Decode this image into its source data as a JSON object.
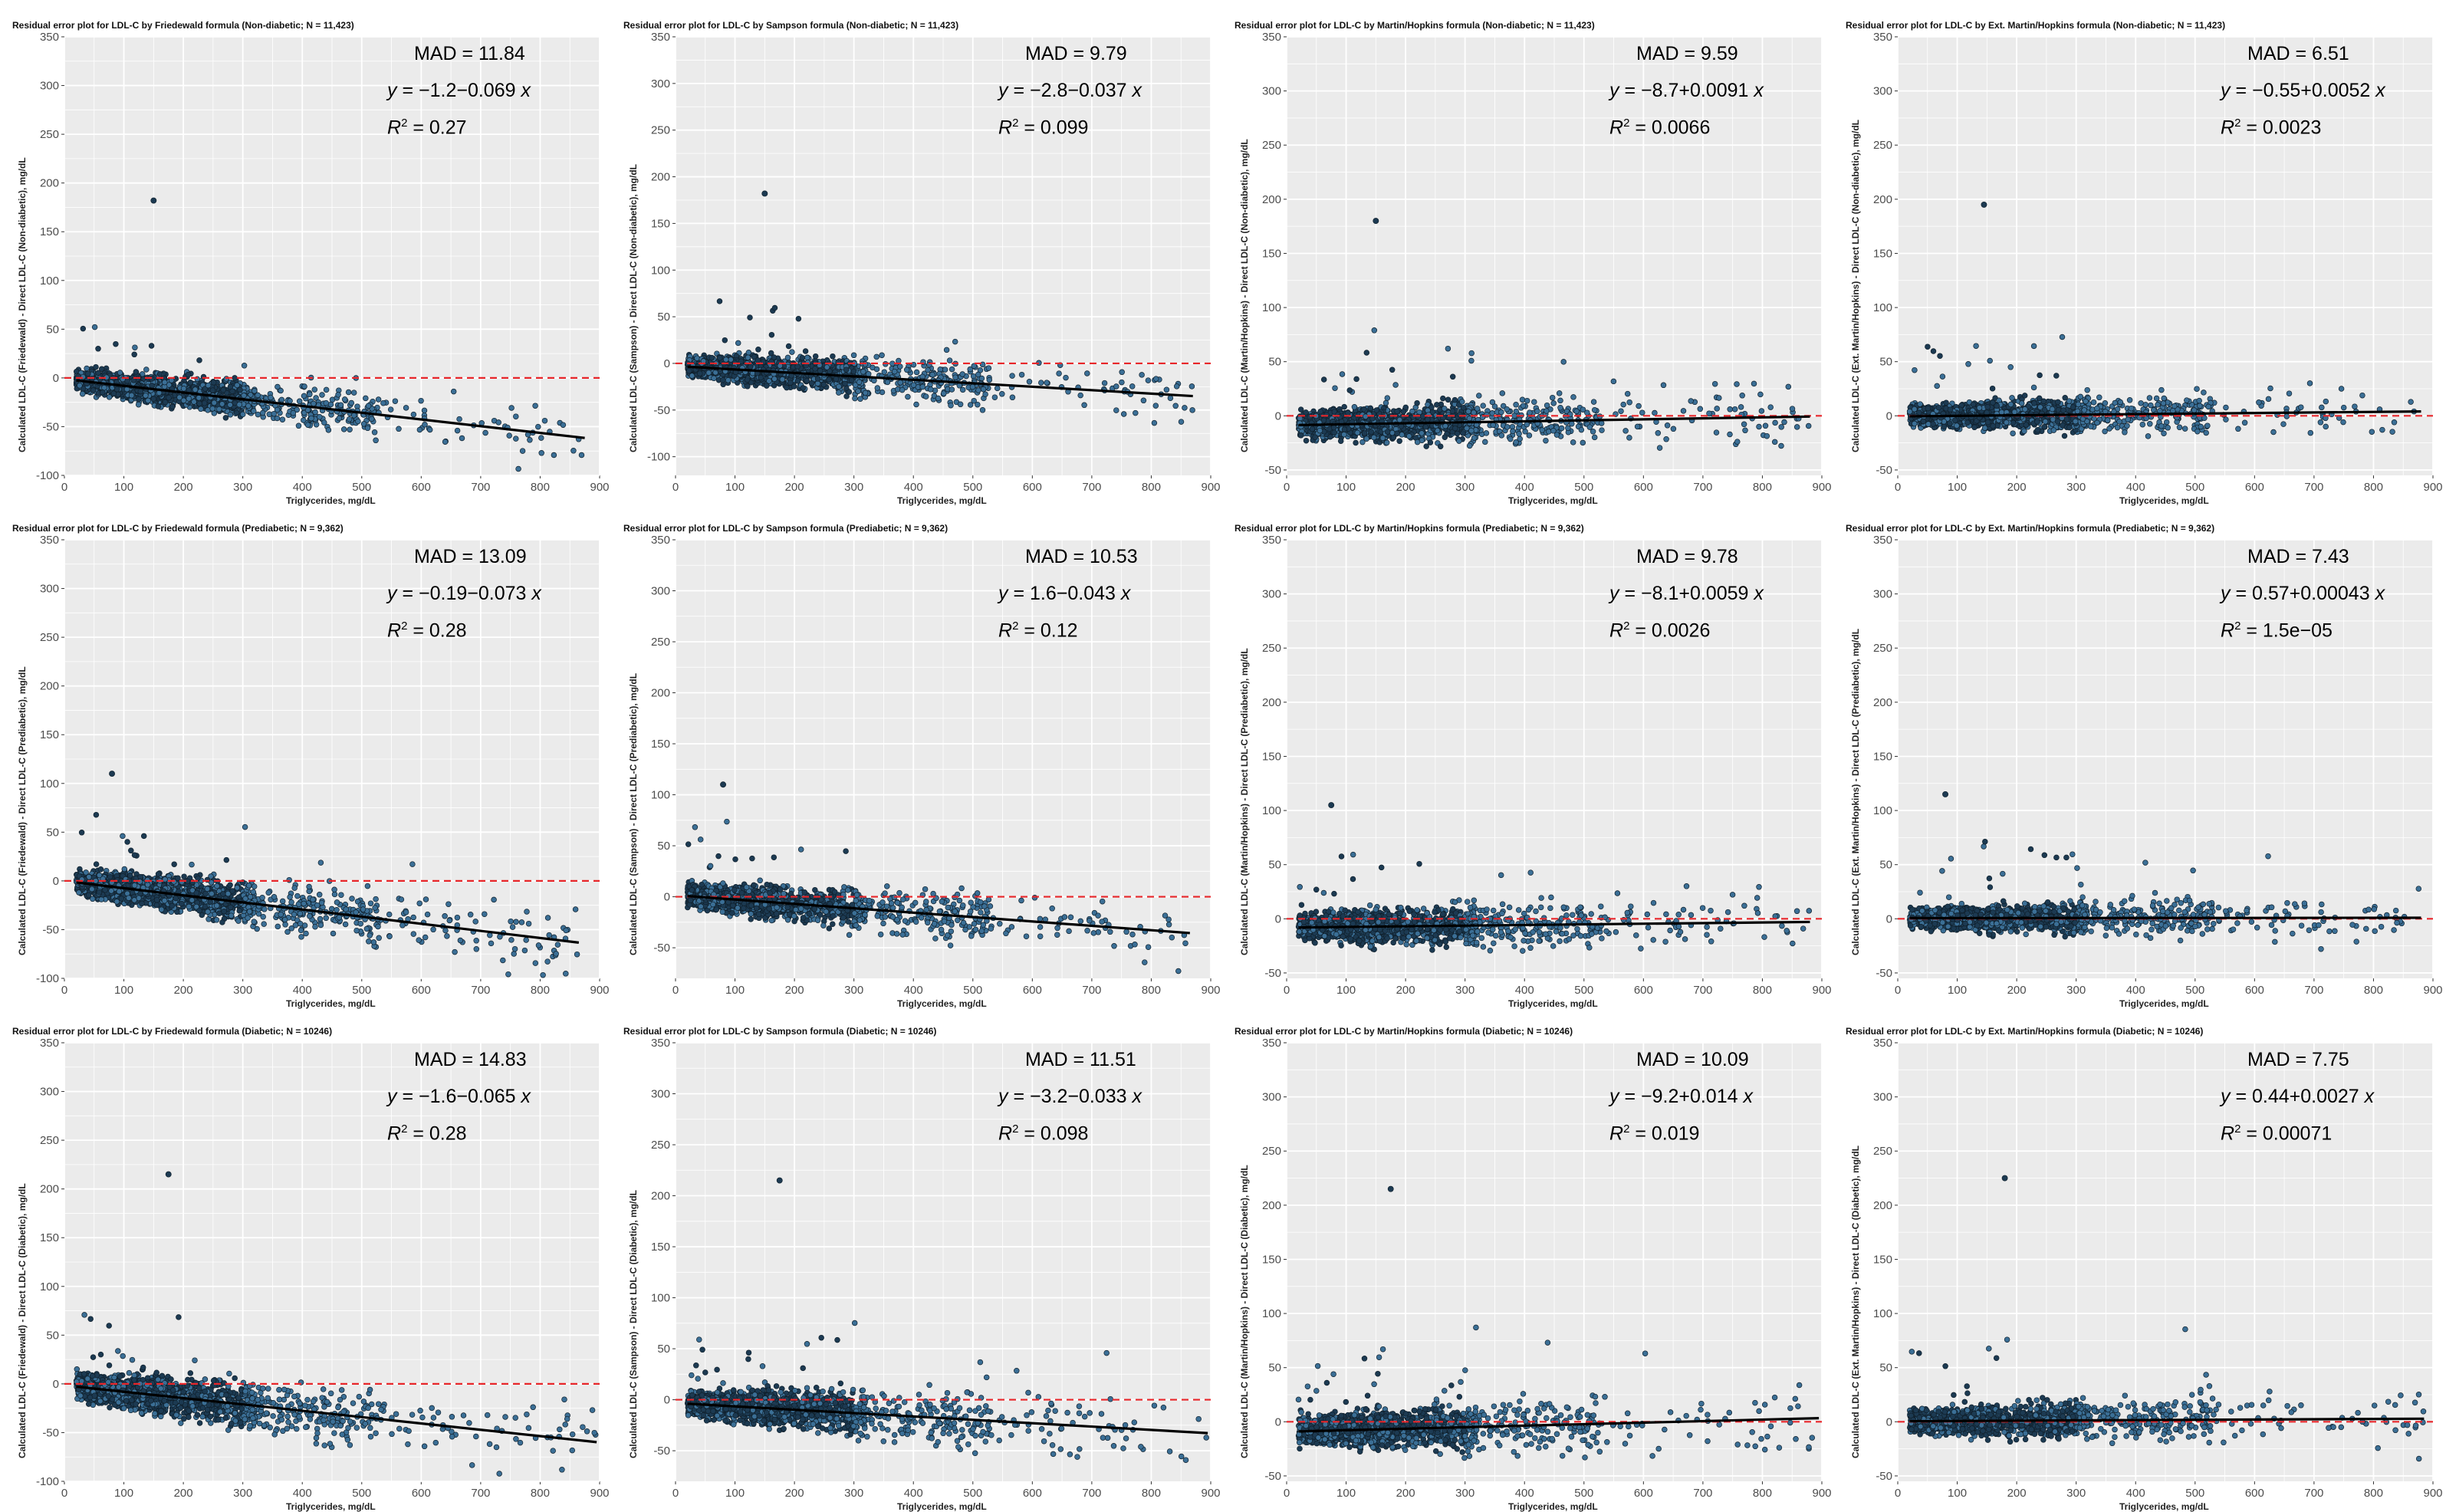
{
  "chart_data": [
    {
      "type": "scatter",
      "title": "Residual error plot for LDL-C by Friedewald formula (Non-diabetic; N = 11,423)",
      "xlabel": "Triglycerides, mg/dL",
      "ylabel": "Calculated LDL-C (Friedewald) - Direct LDL-C (Non-diabetic), mg/dL",
      "xlim": [
        0,
        900
      ],
      "ylim": [
        -100,
        350
      ],
      "xticks": [
        0,
        100,
        200,
        300,
        400,
        500,
        600,
        700,
        800,
        900
      ],
      "yticks": [
        -100,
        -50,
        0,
        50,
        100,
        150,
        200,
        250,
        300,
        350
      ],
      "mad_label": "MAD = 11.84",
      "eq_y": "y",
      "eq_text": " = −1.2−0.069 ",
      "eq_x": "x",
      "r2_text": " = 0.27",
      "fit": {
        "intercept": -1.2,
        "slope": -0.069
      },
      "max_tg": 875,
      "outlier": [
        150,
        182
      ],
      "spread": 9
    },
    {
      "type": "scatter",
      "title": "Residual error plot for LDL-C by Sampson formula (Non-diabetic; N = 11,423)",
      "xlabel": "Triglycerides, mg/dL",
      "ylabel": "Calculated LDL-C (Sampson) - Direct LDL-C (Non-diabetic), mg/dL",
      "xlim": [
        0,
        900
      ],
      "ylim": [
        -120,
        350
      ],
      "xticks": [
        0,
        100,
        200,
        300,
        400,
        500,
        600,
        700,
        800,
        900
      ],
      "yticks": [
        -100,
        -50,
        0,
        50,
        100,
        150,
        200,
        250,
        300,
        350
      ],
      "mad_label": "MAD = 9.79",
      "eq_y": "y",
      "eq_text": " = −2.8−0.037 ",
      "eq_x": "x",
      "r2_text": " = 0.099",
      "fit": {
        "intercept": -2.8,
        "slope": -0.037
      },
      "max_tg": 870,
      "outlier": [
        150,
        182
      ],
      "spread": 9
    },
    {
      "type": "scatter",
      "title": "Residual error plot for LDL-C by Martin/Hopkins formula (Non-diabetic; N = 11,423)",
      "xlabel": "Triglycerides, mg/dL",
      "ylabel": "Calculated LDL-C (Martin/Hopkins) - Direct LDL-C (Non-diabetic), mg/dL",
      "xlim": [
        0,
        900
      ],
      "ylim": [
        -55,
        350
      ],
      "xticks": [
        0,
        100,
        200,
        300,
        400,
        500,
        600,
        700,
        800,
        900
      ],
      "yticks": [
        -50,
        0,
        50,
        100,
        150,
        200,
        250,
        300,
        350
      ],
      "mad_label": "MAD = 9.59",
      "eq_y": "y",
      "eq_text": " = −8.7+0.0091 ",
      "eq_x": "x",
      "r2_text": " = 0.0066",
      "fit": {
        "intercept": -8.7,
        "slope": 0.0091
      },
      "max_tg": 880,
      "outlier": [
        150,
        180
      ],
      "spread": 9
    },
    {
      "type": "scatter",
      "title": "Residual error plot for LDL-C by Ext. Martin/Hopkins formula (Non-diabetic; N = 11,423)",
      "xlabel": "Triglycerides, mg/dL",
      "ylabel": "Calculated LDL-C (Ext. Martin/Hopkins) - Direct LDL-C (Non-diabetic), mg/dL",
      "xlim": [
        0,
        900
      ],
      "ylim": [
        -55,
        350
      ],
      "xticks": [
        0,
        100,
        200,
        300,
        400,
        500,
        600,
        700,
        800,
        900
      ],
      "yticks": [
        -50,
        0,
        50,
        100,
        150,
        200,
        250,
        300,
        350
      ],
      "mad_label": "MAD = 6.51",
      "eq_y": "y",
      "eq_text": " = −0.55+0.0052 ",
      "eq_x": "x",
      "r2_text": " = 0.0023",
      "fit": {
        "intercept": -0.55,
        "slope": 0.0052
      },
      "max_tg": 880,
      "outlier": [
        145,
        195
      ],
      "spread": 7
    },
    {
      "type": "scatter",
      "title": "Residual error plot for LDL-C by Friedewald formula (Prediabetic; N = 9,362)",
      "xlabel": "Triglycerides, mg/dL",
      "ylabel": "Calculated LDL-C (Friedewald) - Direct LDL-C (Prediabetic), mg/dL",
      "xlim": [
        0,
        900
      ],
      "ylim": [
        -100,
        350
      ],
      "xticks": [
        0,
        100,
        200,
        300,
        400,
        500,
        600,
        700,
        800,
        900
      ],
      "yticks": [
        -100,
        -50,
        0,
        50,
        100,
        150,
        200,
        250,
        300,
        350
      ],
      "mad_label": "MAD = 13.09",
      "eq_y": "y",
      "eq_text": " = −0.19−0.073 ",
      "eq_x": "x",
      "r2_text": " = 0.28",
      "fit": {
        "intercept": -0.19,
        "slope": -0.073
      },
      "max_tg": 865,
      "outlier": [
        80,
        110
      ],
      "spread": 10
    },
    {
      "type": "scatter",
      "title": "Residual error plot for LDL-C by Sampson formula (Prediabetic; N = 9,362)",
      "xlabel": "Triglycerides, mg/dL",
      "ylabel": "Calculated LDL-C (Sampson) - Direct LDL-C (Prediabetic), mg/dL",
      "xlim": [
        0,
        900
      ],
      "ylim": [
        -80,
        350
      ],
      "xticks": [
        0,
        100,
        200,
        300,
        400,
        500,
        600,
        700,
        800,
        900
      ],
      "yticks": [
        -50,
        0,
        50,
        100,
        150,
        200,
        250,
        300,
        350
      ],
      "mad_label": "MAD = 10.53",
      "eq_y": "y",
      "eq_text": " =    1.6−0.043 ",
      "eq_x": "x",
      "r2_text": " = 0.12",
      "fit": {
        "intercept": 1.6,
        "slope": -0.043
      },
      "max_tg": 865,
      "outlier": [
        80,
        110
      ],
      "spread": 9
    },
    {
      "type": "scatter",
      "title": "Residual error plot for LDL-C by Martin/Hopkins formula (Prediabetic; N = 9,362)",
      "xlabel": "Triglycerides, mg/dL",
      "ylabel": "Calculated LDL-C (Martin/Hopkins) - Direct LDL-C (Prediabetic), mg/dL",
      "xlim": [
        0,
        900
      ],
      "ylim": [
        -55,
        350
      ],
      "xticks": [
        0,
        100,
        200,
        300,
        400,
        500,
        600,
        700,
        800,
        900
      ],
      "yticks": [
        -50,
        0,
        50,
        100,
        150,
        200,
        250,
        300,
        350
      ],
      "mad_label": "MAD = 9.78",
      "eq_y": "y",
      "eq_text": " = −8.1+0.0059 ",
      "eq_x": "x",
      "r2_text": " = 0.0026",
      "fit": {
        "intercept": -8.1,
        "slope": 0.0059
      },
      "max_tg": 880,
      "outlier": [
        75,
        105
      ],
      "spread": 9
    },
    {
      "type": "scatter",
      "title": "Residual error plot for LDL-C by Ext. Martin/Hopkins formula (Prediabetic; N = 9,362)",
      "xlabel": "Triglycerides, mg/dL",
      "ylabel": "Calculated LDL-C (Ext. Martin/Hopkins) - Direct LDL-C (Prediabetic), mg/dL",
      "xlim": [
        0,
        900
      ],
      "ylim": [
        -55,
        350
      ],
      "xticks": [
        0,
        100,
        200,
        300,
        400,
        500,
        600,
        700,
        800,
        900
      ],
      "yticks": [
        -50,
        0,
        50,
        100,
        150,
        200,
        250,
        300,
        350
      ],
      "mad_label": "MAD = 7.43",
      "eq_y": "y",
      "eq_text": " = 0.57+0.00043 ",
      "eq_x": "x",
      "r2_text": " = 1.5e−05",
      "fit": {
        "intercept": 0.57,
        "slope": 0.00043
      },
      "max_tg": 880,
      "outlier": [
        80,
        115
      ],
      "spread": 7
    },
    {
      "type": "scatter",
      "title": "Residual error plot for LDL-C by Friedewald formula (Diabetic; N = 10246)",
      "xlabel": "Triglycerides, mg/dL",
      "ylabel": "Calculated LDL-C (Friedewald) - Direct LDL-C (Diabetic), mg/dL",
      "xlim": [
        0,
        900
      ],
      "ylim": [
        -100,
        350
      ],
      "xticks": [
        0,
        100,
        200,
        300,
        400,
        500,
        600,
        700,
        800,
        900
      ],
      "yticks": [
        -100,
        -50,
        0,
        50,
        100,
        150,
        200,
        250,
        300,
        350
      ],
      "mad_label": "MAD = 14.83",
      "eq_y": "y",
      "eq_text": " = −1.6−0.065 ",
      "eq_x": "x",
      "r2_text": " = 0.28",
      "fit": {
        "intercept": -1.6,
        "slope": -0.065
      },
      "max_tg": 895,
      "outlier": [
        175,
        215
      ],
      "spread": 11
    },
    {
      "type": "scatter",
      "title": "Residual error plot for LDL-C by Sampson formula (Diabetic; N = 10246)",
      "xlabel": "Triglycerides, mg/dL",
      "ylabel": "Calculated LDL-C (Sampson) - Direct LDL-C (Diabetic), mg/dL",
      "xlim": [
        0,
        900
      ],
      "ylim": [
        -80,
        350
      ],
      "xticks": [
        0,
        100,
        200,
        300,
        400,
        500,
        600,
        700,
        800,
        900
      ],
      "yticks": [
        -50,
        0,
        50,
        100,
        150,
        200,
        250,
        300,
        350
      ],
      "mad_label": "MAD = 11.51",
      "eq_y": "y",
      "eq_text": " = −3.2−0.033 ",
      "eq_x": "x",
      "r2_text": " = 0.098",
      "fit": {
        "intercept": -3.2,
        "slope": -0.033
      },
      "max_tg": 895,
      "outlier": [
        175,
        215
      ],
      "spread": 10
    },
    {
      "type": "scatter",
      "title": "Residual error plot for LDL-C by Martin/Hopkins formula (Diabetic; N = 10246)",
      "xlabel": "Triglycerides, mg/dL",
      "ylabel": "Calculated LDL-C (Martin/Hopkins) - Direct LDL-C (Diabetic), mg/dL",
      "xlim": [
        0,
        900
      ],
      "ylim": [
        -55,
        350
      ],
      "xticks": [
        0,
        100,
        200,
        300,
        400,
        500,
        600,
        700,
        800,
        900
      ],
      "yticks": [
        -50,
        0,
        50,
        100,
        150,
        200,
        250,
        300,
        350
      ],
      "mad_label": "MAD = 10.09",
      "eq_y": "y",
      "eq_text": " = −9.2+0.014 ",
      "eq_x": "x",
      "r2_text": " = 0.019",
      "fit": {
        "intercept": -9.2,
        "slope": 0.014
      },
      "max_tg": 895,
      "outlier": [
        175,
        215
      ],
      "spread": 10
    },
    {
      "type": "scatter",
      "title": "Residual error plot for LDL-C by Ext. Martin/Hopkins formula (Diabetic; N = 10246)",
      "xlabel": "Triglycerides, mg/dL",
      "ylabel": "Calculated LDL-C (Ext. Martin/Hopkins) - Direct LDL-C (Diabetic), mg/dL",
      "xlim": [
        0,
        900
      ],
      "ylim": [
        -55,
        350
      ],
      "xticks": [
        0,
        100,
        200,
        300,
        400,
        500,
        600,
        700,
        800,
        900
      ],
      "yticks": [
        -50,
        0,
        50,
        100,
        150,
        200,
        250,
        300,
        350
      ],
      "mad_label": "MAD = 7.75",
      "eq_y": "y",
      "eq_text": " = 0.44+0.0027 ",
      "eq_x": "x",
      "r2_text": " = 0.00071",
      "fit": {
        "intercept": 0.44,
        "slope": 0.0027
      },
      "max_tg": 885,
      "outlier": [
        180,
        225
      ],
      "spread": 8
    }
  ],
  "colors": {
    "panel_bg": "#ebebeb",
    "grid": "#ffffff",
    "point_fill": "#3b6f96",
    "point_stroke": "#10202c",
    "zero_line": "#e8262a",
    "fit_line": "#000000"
  }
}
